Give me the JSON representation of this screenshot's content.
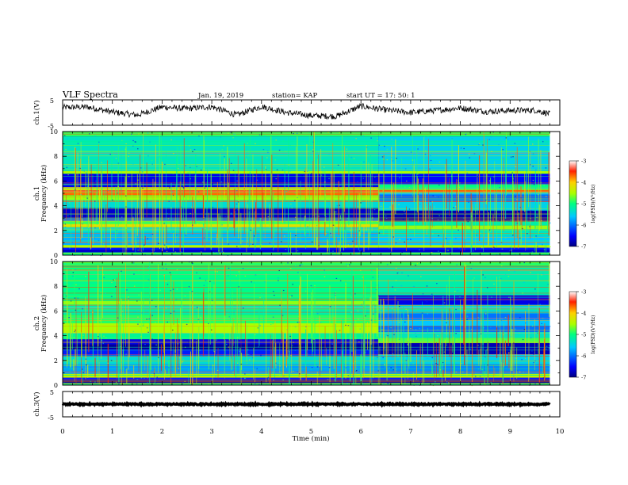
{
  "header": {
    "title": "VLF Spectra",
    "date": "Jan. 19, 2019",
    "station": "station= KAP",
    "start": "start  UT =   17: 50: 1"
  },
  "chart_data": [
    {
      "type": "line",
      "panel": "ch1-waveform",
      "ylabel": "ch.1(V)",
      "ylim": [
        -5,
        5
      ],
      "yticks": [
        "5",
        "-5"
      ],
      "xlim": [
        0,
        10
      ],
      "trend": {
        "x": [
          0,
          0.5,
          1,
          1.5,
          2,
          2.5,
          3,
          3.5,
          4,
          4.5,
          5,
          5.5,
          6,
          6.5,
          7,
          7.5,
          8,
          8.5,
          9,
          9.5,
          9.8
        ],
        "y": [
          2.0,
          2.2,
          0.2,
          -1.0,
          2.2,
          1.5,
          2.3,
          -1.0,
          2.4,
          0.0,
          -1.2,
          -1.5,
          2.5,
          1.0,
          0.0,
          0.8,
          1.8,
          0.4,
          0.8,
          0.9,
          -0.5
        ]
      },
      "noise_amplitude": 1.2,
      "color": "#000000"
    },
    {
      "type": "heatmap",
      "panel": "ch1-spectrogram",
      "ylabel": "ch.1",
      "ylabel2": "Frequency (kHz)",
      "ylim": [
        0,
        10
      ],
      "yticks": [
        "0",
        "2",
        "4",
        "6",
        "8",
        "10"
      ],
      "xlim": [
        0,
        9.8
      ],
      "transition_min": 6.35,
      "colorbar": {
        "label": "log(PSD)(V²/Hz)",
        "range": [
          -7,
          -3
        ],
        "ticks": [
          "-3",
          "-4",
          "-5",
          "-6",
          "-7"
        ]
      },
      "bands_before": [
        {
          "f": [
            9.6,
            10.0
          ],
          "level": -4.9
        },
        {
          "f": [
            6.8,
            9.6
          ],
          "level": -5.3
        },
        {
          "f": [
            6.6,
            6.8
          ],
          "level": -4.5
        },
        {
          "f": [
            5.5,
            6.6
          ],
          "level": -6.6
        },
        {
          "f": [
            5.25,
            5.5
          ],
          "level": -4.2
        },
        {
          "f": [
            5.05,
            5.25
          ],
          "level": -3.4
        },
        {
          "f": [
            4.85,
            5.05
          ],
          "level": -3.7
        },
        {
          "f": [
            4.4,
            4.85
          ],
          "level": -4.6
        },
        {
          "f": [
            3.8,
            4.4
          ],
          "level": -5.4
        },
        {
          "f": [
            3.0,
            3.8
          ],
          "level": -6.7
        },
        {
          "f": [
            2.75,
            3.0
          ],
          "level": -6.0
        },
        {
          "f": [
            2.5,
            2.75
          ],
          "level": -4.8
        },
        {
          "f": [
            2.25,
            2.5
          ],
          "level": -4.2
        },
        {
          "f": [
            1.8,
            2.25
          ],
          "level": -5.4
        },
        {
          "f": [
            0.8,
            1.8
          ],
          "level": -5.7
        },
        {
          "f": [
            0.6,
            0.8
          ],
          "level": -4.4
        },
        {
          "f": [
            0.45,
            0.6
          ],
          "level": -6.4
        },
        {
          "f": [
            0.2,
            0.45
          ],
          "level": -6.7
        },
        {
          "f": [
            0.0,
            0.2
          ],
          "level": -5.0
        }
      ],
      "bands_after": [
        {
          "f": [
            9.6,
            10.0
          ],
          "level": -4.9
        },
        {
          "f": [
            6.8,
            9.6
          ],
          "level": -5.5
        },
        {
          "f": [
            6.6,
            6.8
          ],
          "level": -4.5
        },
        {
          "f": [
            5.7,
            6.6
          ],
          "level": -6.5
        },
        {
          "f": [
            5.3,
            5.7
          ],
          "level": -5.0
        },
        {
          "f": [
            5.1,
            5.3
          ],
          "level": -3.6
        },
        {
          "f": [
            4.9,
            5.1
          ],
          "level": -5.6
        },
        {
          "f": [
            4.3,
            4.9
          ],
          "level": -6.0
        },
        {
          "f": [
            3.6,
            4.3
          ],
          "level": -5.5
        },
        {
          "f": [
            2.7,
            3.6
          ],
          "level": -6.8
        },
        {
          "f": [
            2.4,
            2.7
          ],
          "level": -5.2
        },
        {
          "f": [
            2.1,
            2.4
          ],
          "level": -4.6
        },
        {
          "f": [
            1.6,
            2.1
          ],
          "level": -5.3
        },
        {
          "f": [
            0.8,
            1.6
          ],
          "level": -5.6
        },
        {
          "f": [
            0.6,
            0.8
          ],
          "level": -4.4
        },
        {
          "f": [
            0.45,
            0.6
          ],
          "level": -6.4
        },
        {
          "f": [
            0.2,
            0.45
          ],
          "level": -6.7
        },
        {
          "f": [
            0.0,
            0.2
          ],
          "level": -5.0
        }
      ]
    },
    {
      "type": "heatmap",
      "panel": "ch2-spectrogram",
      "ylabel": "ch.2",
      "ylabel2": "Frequency (kHz)",
      "ylim": [
        0,
        10
      ],
      "yticks": [
        "0",
        "2",
        "4",
        "6",
        "8",
        "10"
      ],
      "xlim": [
        0,
        9.8
      ],
      "transition_min": 6.35,
      "colorbar": {
        "label": "log(PSD)(V²/Hz)",
        "range": [
          -7,
          -3
        ],
        "ticks": [
          "-3",
          "-4",
          "-5",
          "-6",
          "-7"
        ]
      },
      "bands_before": [
        {
          "f": [
            9.6,
            10.0
          ],
          "level": -4.9
        },
        {
          "f": [
            6.8,
            9.6
          ],
          "level": -5.0
        },
        {
          "f": [
            6.5,
            6.8
          ],
          "level": -4.6
        },
        {
          "f": [
            5.7,
            6.5
          ],
          "level": -5.2
        },
        {
          "f": [
            5.0,
            5.7
          ],
          "level": -4.9
        },
        {
          "f": [
            4.2,
            5.0
          ],
          "level": -4.5
        },
        {
          "f": [
            3.7,
            4.2
          ],
          "level": -5.1
        },
        {
          "f": [
            3.3,
            3.7
          ],
          "level": -6.6
        },
        {
          "f": [
            2.9,
            3.3
          ],
          "level": -6.9
        },
        {
          "f": [
            2.4,
            2.9
          ],
          "level": -6.4
        },
        {
          "f": [
            1.7,
            2.4
          ],
          "level": -5.4
        },
        {
          "f": [
            0.9,
            1.7
          ],
          "level": -5.8
        },
        {
          "f": [
            0.6,
            0.9
          ],
          "level": -4.4
        },
        {
          "f": [
            0.4,
            0.6
          ],
          "level": -6.4
        },
        {
          "f": [
            0.15,
            0.4
          ],
          "level": -6.9
        },
        {
          "f": [
            0.0,
            0.15
          ],
          "level": -5.0
        }
      ],
      "bands_after": [
        {
          "f": [
            9.6,
            10.0
          ],
          "level": -4.9
        },
        {
          "f": [
            7.3,
            9.6
          ],
          "level": -5.2
        },
        {
          "f": [
            6.5,
            7.3
          ],
          "level": -6.6
        },
        {
          "f": [
            5.8,
            6.5
          ],
          "level": -5.4
        },
        {
          "f": [
            5.3,
            5.8
          ],
          "level": -6.0
        },
        {
          "f": [
            4.8,
            5.3
          ],
          "level": -5.6
        },
        {
          "f": [
            4.3,
            4.8
          ],
          "level": -6.0
        },
        {
          "f": [
            3.8,
            4.3
          ],
          "level": -5.3
        },
        {
          "f": [
            3.4,
            3.8
          ],
          "level": -4.8
        },
        {
          "f": [
            2.5,
            3.4
          ],
          "level": -6.8
        },
        {
          "f": [
            1.7,
            2.5
          ],
          "level": -5.5
        },
        {
          "f": [
            0.9,
            1.7
          ],
          "level": -5.9
        },
        {
          "f": [
            0.6,
            0.9
          ],
          "level": -4.4
        },
        {
          "f": [
            0.4,
            0.6
          ],
          "level": -6.4
        },
        {
          "f": [
            0.15,
            0.4
          ],
          "level": -6.9
        },
        {
          "f": [
            0.0,
            0.15
          ],
          "level": -5.0
        }
      ]
    },
    {
      "type": "line",
      "panel": "ch3-waveform",
      "ylabel": "ch.3(V)",
      "ylim": [
        -5,
        5
      ],
      "yticks": [
        "5",
        "-5"
      ],
      "xlim": [
        0,
        10
      ],
      "trend": {
        "x": [
          0,
          9.8
        ],
        "y": [
          0.0,
          0.0
        ]
      },
      "noise_amplitude": 0.25,
      "color": "#000000"
    }
  ],
  "xaxis": {
    "label": "Time  (min)",
    "ticks": [
      "0",
      "1",
      "2",
      "3",
      "4",
      "5",
      "6",
      "7",
      "8",
      "9",
      "10"
    ]
  }
}
